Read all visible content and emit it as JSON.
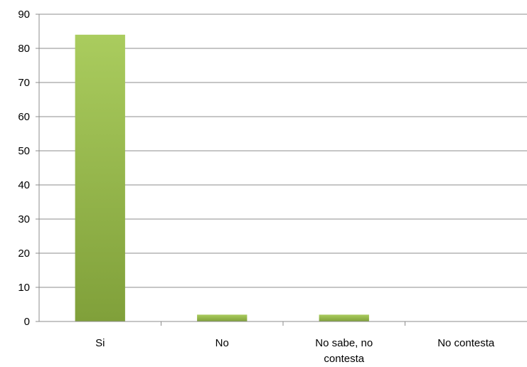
{
  "chart_data": {
    "type": "bar",
    "title": "",
    "xlabel": "",
    "ylabel": "",
    "categories": [
      "Si",
      "No",
      "No sabe, no contesta",
      "No contesta"
    ],
    "category_lines": [
      [
        "Si"
      ],
      [
        "No"
      ],
      [
        "No sabe, no",
        "contesta"
      ],
      [
        "No contesta"
      ]
    ],
    "values": [
      84,
      2,
      2,
      0
    ],
    "ylim": [
      0,
      90
    ],
    "yticks": [
      0,
      10,
      20,
      30,
      40,
      50,
      60,
      70,
      80,
      90
    ],
    "grid": true,
    "legend": "none",
    "colors": {
      "bar_top": "#aacc5e",
      "bar_bottom": "#80a03a",
      "grid": "#8c8c8c",
      "text": "#000000"
    }
  }
}
